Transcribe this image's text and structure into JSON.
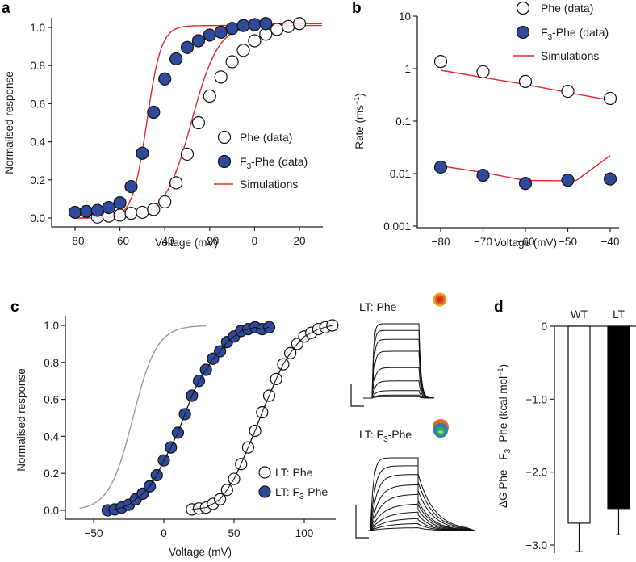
{
  "colors": {
    "filled_marker": "#304a9b",
    "simulation_line": "#e0282e",
    "reference_curve": "#9a9a9a",
    "trace": "#111111",
    "lt_bar": "#000000",
    "wt_bar": "#ffffff"
  },
  "chart_data": [
    {
      "panel": "a",
      "type": "scatter",
      "xlabel": "Voltage (mV)",
      "ylabel": "Normalised response",
      "xlim": [
        -90,
        30
      ],
      "ylim": [
        -0.05,
        1.05
      ],
      "xticks": [
        -80,
        -60,
        -40,
        -20,
        0,
        20
      ],
      "xtick_labels": [
        "−80",
        "−60",
        "−40",
        "−20",
        "0",
        "20"
      ],
      "yticks": [
        0.0,
        0.2,
        0.4,
        0.6,
        0.8,
        1.0
      ],
      "ytick_labels": [
        "0.0",
        "0.2",
        "0.4",
        "0.6",
        "0.8",
        "1.0"
      ],
      "legend_position": "center-right",
      "legend": [
        {
          "label": "Phe (data)",
          "marker": "open-circle"
        },
        {
          "label_main": "F",
          "label_sub": "3",
          "label_rest": "-Phe (data)",
          "marker": "filled-circle"
        },
        {
          "label": "Simulations",
          "marker": "red-line"
        }
      ],
      "series": [
        {
          "name": "Phe (data)",
          "marker": "open",
          "x": [
            -70,
            -65,
            -60,
            -55,
            -50,
            -45,
            -40,
            -35,
            -30,
            -25,
            -20,
            -15,
            -10,
            -5,
            0,
            5,
            10,
            15,
            20
          ],
          "y": [
            0.005,
            0.01,
            0.015,
            0.025,
            0.03,
            0.045,
            0.085,
            0.185,
            0.335,
            0.5,
            0.64,
            0.74,
            0.82,
            0.88,
            0.93,
            0.965,
            0.99,
            1.005,
            1.02
          ]
        },
        {
          "name": "F3-Phe (data)",
          "marker": "filled",
          "x": [
            -80,
            -75,
            -70,
            -65,
            -60,
            -55,
            -50,
            -45,
            -40,
            -35,
            -30,
            -25,
            -20,
            -15,
            -10,
            -5,
            0,
            5
          ],
          "y": [
            0.03,
            0.035,
            0.04,
            0.055,
            0.08,
            0.165,
            0.34,
            0.555,
            0.73,
            0.835,
            0.895,
            0.93,
            0.96,
            0.975,
            0.995,
            1.01,
            1.015,
            1.02
          ]
        },
        {
          "name": "Simulations (Phe)",
          "type": "boltzmann",
          "v_half": -28,
          "slope": 6.0,
          "x_range": [
            -80,
            30
          ],
          "y_max": 1.02
        },
        {
          "name": "Simulations (F3-Phe)",
          "type": "boltzmann",
          "v_half": -48,
          "slope": 3.2,
          "x_range": [
            -80,
            30
          ],
          "y_max": 1.01
        }
      ]
    },
    {
      "panel": "b",
      "type": "scatter",
      "yscale": "log",
      "xlabel": "Voltage (mV)",
      "ylabel_main": "Rate (ms",
      "ylabel_sup": "−1",
      "ylabel_end": ")",
      "xlim": [
        -85,
        -37
      ],
      "ylim": [
        0.001,
        10
      ],
      "xticks": [
        -80,
        -70,
        -60,
        -50,
        -40
      ],
      "xtick_labels": [
        "−80",
        "−70",
        "−60",
        "−50",
        "−40"
      ],
      "yticks": [
        0.001,
        0.01,
        0.1,
        1,
        10
      ],
      "ytick_labels": [
        "0.001",
        "0.01",
        "0.1",
        "1",
        "10"
      ],
      "legend_position": "top-right",
      "legend": [
        {
          "label": "Phe (data)",
          "marker": "open-circle"
        },
        {
          "label_main": "F",
          "label_sub": "3",
          "label_rest": "-Phe (data)",
          "marker": "filled-circle"
        },
        {
          "label": "Simulations",
          "marker": "red-line"
        }
      ],
      "series": [
        {
          "name": "Phe (data)",
          "marker": "open",
          "x": [
            -80,
            -70,
            -60,
            -50,
            -40
          ],
          "y": [
            1.37,
            0.87,
            0.57,
            0.37,
            0.27
          ]
        },
        {
          "name": "F3-Phe (data)",
          "marker": "filled",
          "x": [
            -80,
            -70,
            -60,
            -50,
            -40
          ],
          "y": [
            0.0133,
            0.0093,
            0.0065,
            0.0075,
            0.0079
          ]
        },
        {
          "name": "Simulations (Phe)",
          "type": "line",
          "x": [
            -80,
            -70,
            -60,
            -50,
            -40
          ],
          "y": [
            0.93,
            0.68,
            0.5,
            0.35,
            0.25
          ]
        },
        {
          "name": "Simulations (F3-Phe)",
          "type": "line",
          "x": [
            -80,
            -70,
            -60,
            -50,
            -48,
            -40
          ],
          "y": [
            0.014,
            0.0105,
            0.0074,
            0.0073,
            0.0074,
            0.022
          ]
        }
      ]
    },
    {
      "panel": "c",
      "type": "scatter",
      "xlabel": "Voltage (mV)",
      "ylabel": "Normalised response",
      "xlim": [
        -70,
        120
      ],
      "ylim": [
        -0.05,
        1.05
      ],
      "xticks": [
        -50,
        0,
        50,
        100
      ],
      "xtick_labels": [
        "−50",
        "0",
        "50",
        "100"
      ],
      "yticks": [
        0.0,
        0.2,
        0.4,
        0.6,
        0.8,
        1.0
      ],
      "ytick_labels": [
        "0.0",
        "0.2",
        "0.4",
        "0.6",
        "0.8",
        "1.0"
      ],
      "legend_position": "bottom-right",
      "legend": [
        {
          "label": "LT: Phe",
          "marker": "open-circle"
        },
        {
          "label_main": "LT: F",
          "label_sub": "3",
          "label_rest": "-Phe",
          "marker": "filled-circle"
        }
      ],
      "series": [
        {
          "name": "Reference (WT)",
          "type": "boltzmann",
          "color": "gray",
          "v_half": -22,
          "slope": 8.5,
          "x_range": [
            -60,
            30
          ],
          "y_max": 1.0
        },
        {
          "name": "LT: F3-Phe",
          "marker": "filled",
          "x": [
            -40,
            -35,
            -30,
            -25,
            -20,
            -15,
            -10,
            -5,
            0,
            5,
            10,
            15,
            20,
            25,
            30,
            35,
            40,
            45,
            50,
            55,
            60,
            65,
            70,
            75
          ],
          "y": [
            0.0,
            0.005,
            0.015,
            0.03,
            0.06,
            0.09,
            0.13,
            0.19,
            0.27,
            0.34,
            0.42,
            0.52,
            0.62,
            0.7,
            0.76,
            0.82,
            0.86,
            0.91,
            0.94,
            0.97,
            0.98,
            0.99,
            0.98,
            0.99
          ]
        },
        {
          "name": "LT: Phe",
          "marker": "open",
          "x": [
            20,
            25,
            30,
            35,
            40,
            45,
            50,
            55,
            60,
            65,
            70,
            75,
            80,
            85,
            90,
            95,
            100,
            105,
            110,
            115,
            120
          ],
          "y": [
            0.005,
            0.01,
            0.015,
            0.035,
            0.06,
            0.11,
            0.17,
            0.25,
            0.34,
            0.43,
            0.53,
            0.62,
            0.71,
            0.79,
            0.85,
            0.9,
            0.94,
            0.96,
            0.98,
            0.99,
            1.0
          ]
        }
      ]
    },
    {
      "panel": "c-traces",
      "type": "line",
      "traces": [
        {
          "title_main": "LT: Phe",
          "sweeps": 9,
          "steady_levels": [
            1.0,
            0.91,
            0.79,
            0.63,
            0.41,
            0.23,
            0.1,
            0.04,
            0.02
          ],
          "deactivation": "fast"
        },
        {
          "title_main": "LT: F",
          "title_sub": "3",
          "title_rest": "-Phe",
          "sweeps": 10,
          "steady_levels": [
            1.0,
            0.89,
            0.77,
            0.63,
            0.5,
            0.37,
            0.26,
            0.17,
            0.1,
            0.04
          ],
          "deactivation": "slow"
        }
      ]
    },
    {
      "panel": "d",
      "type": "bar",
      "categories": [
        "WT",
        "LT"
      ],
      "values": [
        -2.7,
        -2.5
      ],
      "errors": [
        0.39,
        0.36
      ],
      "ylabel_main": "ΔG Phe - F",
      "ylabel_sub": "3",
      "ylabel_mid": "- Phe (kcal mol",
      "ylabel_sup": "−1",
      "ylabel_end": ")",
      "ylim": [
        -3.1,
        0
      ],
      "yticks": [
        0,
        -1.0,
        -2.0,
        -3.0
      ],
      "ytick_labels": [
        "0",
        "−1.0",
        "−2.0",
        "−3.0"
      ]
    }
  ],
  "panel_labels": [
    "a",
    "b",
    "c",
    "d"
  ]
}
